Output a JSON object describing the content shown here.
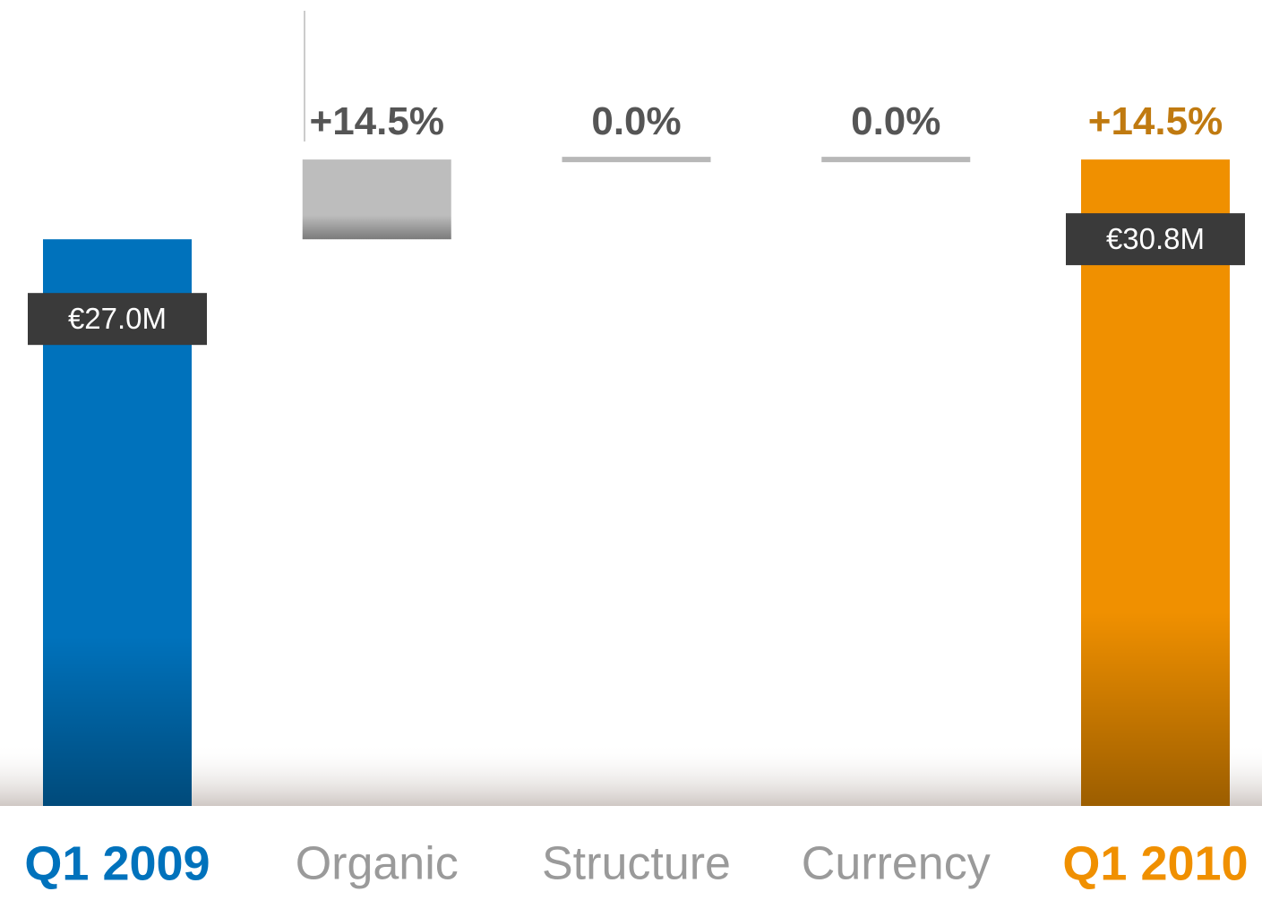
{
  "chart_data": {
    "type": "waterfall",
    "categories": [
      "Q1 2009",
      "Organic",
      "Structure",
      "Currency",
      "Q1 2010"
    ],
    "measure": [
      "total",
      "relative",
      "relative",
      "relative",
      "total"
    ],
    "values": [
      27.0,
      3.8,
      0.0,
      0.0,
      30.8
    ],
    "value_labels": [
      "€27.0M",
      null,
      null,
      null,
      "€30.8M"
    ],
    "change_values": [
      null,
      14.5,
      0.0,
      0.0,
      14.5
    ],
    "change_labels": [
      null,
      "+14.5%",
      "0.0%",
      "0.0%",
      "+14.5%"
    ],
    "colors": [
      "#0072bc",
      "#bdbdbd",
      "#bdbdbd",
      "#bdbdbd",
      "#f09000"
    ],
    "change_label_colors": [
      null,
      "#555555",
      "#555555",
      "#555555",
      "#c07a10"
    ],
    "category_colors": [
      "#0072bc",
      "#9a9a9a",
      "#9a9a9a",
      "#9a9a9a",
      "#f09000"
    ],
    "ylim": [
      0,
      32
    ]
  }
}
